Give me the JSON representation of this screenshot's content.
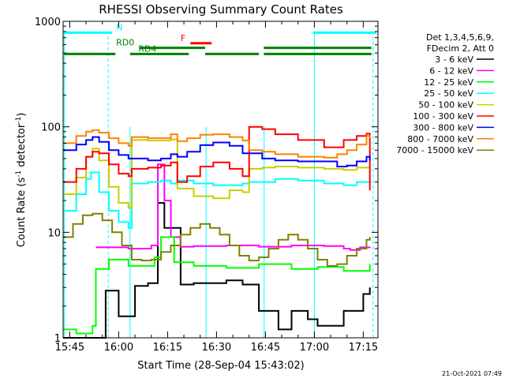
{
  "chart_data": {
    "type": "line",
    "title": "RHESSI Observing Summary Count Rates",
    "xlabel": "Start Time (28-Sep-04 15:43:02)",
    "ylabel_main": "Count Rate (s",
    "ylabel_exp1": "-1",
    "ylabel_mid": " detector",
    "ylabel_exp2": "-1",
    "ylabel_end": ")",
    "yscale": "log",
    "ylim": [
      1,
      1000
    ],
    "xlim_minutes": [
      -0.03,
      96.5
    ],
    "x_ticks": [
      {
        "label": "15:45",
        "t": 2
      },
      {
        "label": "16:00",
        "t": 17
      },
      {
        "label": "16:15",
        "t": 32
      },
      {
        "label": "16:30",
        "t": 47
      },
      {
        "label": "16:45",
        "t": 62
      },
      {
        "label": "17:00",
        "t": 77
      },
      {
        "label": "17:15",
        "t": 92
      }
    ],
    "y_ticks": [
      {
        "label": "1",
        "v": 1
      },
      {
        "label": "10",
        "v": 10
      },
      {
        "label": "100",
        "v": 100
      },
      {
        "label": "1000",
        "v": 1000
      }
    ],
    "grid": false,
    "legend_position": "top-right",
    "legend_header": [
      "Det 1,3,4,5,6,9,",
      "FDecim 2, Att 0"
    ],
    "series": [
      {
        "name": "3 - 6 keV",
        "color": "#000000",
        "x": [
          0,
          10,
          13,
          17,
          22,
          26,
          29,
          31,
          36,
          40,
          50,
          55,
          60,
          66,
          70,
          75,
          78,
          86,
          92,
          94
        ],
        "y": [
          1,
          1,
          2.8,
          1.6,
          3.1,
          3.3,
          19,
          11,
          3.2,
          3.3,
          3.5,
          3.2,
          1.8,
          1.2,
          1.8,
          1.5,
          1.3,
          1.8,
          2.6,
          3.0
        ]
      },
      {
        "name": "6 - 12 keV",
        "color": "#ff00ff",
        "x": [
          10,
          20,
          27,
          29,
          31,
          33,
          36,
          40,
          50,
          60,
          70,
          80,
          86,
          88,
          91,
          94
        ],
        "y": [
          7.2,
          7.0,
          7.5,
          44,
          20,
          9,
          7.3,
          7.4,
          7.5,
          7.3,
          7.5,
          7.4,
          7.0,
          6.8,
          7.2,
          7.3
        ]
      },
      {
        "name": "12 - 25 keV",
        "color": "#00ff00",
        "x": [
          0,
          4,
          9,
          10,
          14,
          20,
          28,
          30,
          34,
          40,
          50,
          60,
          70,
          78,
          86,
          94
        ],
        "y": [
          1.2,
          1.1,
          1.3,
          4.5,
          5.5,
          4.8,
          5.8,
          9,
          5.2,
          4.8,
          4.6,
          5,
          4.5,
          4.7,
          4.3,
          5.0
        ]
      },
      {
        "name": "25 - 50 keV",
        "color": "#00ffff",
        "x": [
          0,
          4,
          7,
          8.5,
          11,
          14,
          17,
          20,
          21,
          26,
          30,
          33,
          35,
          40,
          46,
          51,
          55,
          57,
          61,
          65,
          72,
          80,
          86,
          90,
          94
        ],
        "y": [
          16,
          23,
          32,
          37,
          24,
          16,
          12.5,
          11,
          29,
          30,
          31,
          29,
          31,
          29,
          28,
          28,
          29,
          30,
          30,
          32,
          31,
          29,
          28,
          30,
          31
        ]
      },
      {
        "name": "50 - 100 keV",
        "color": "#cccc00",
        "x": [
          0,
          4,
          7,
          9,
          11,
          14,
          17,
          20,
          21,
          26,
          30,
          33,
          35,
          40,
          46,
          51,
          55,
          57,
          61,
          65,
          72,
          80,
          86,
          90,
          94
        ],
        "y": [
          23,
          33,
          52,
          62,
          48,
          27,
          19,
          17,
          75,
          74,
          74,
          76,
          26,
          22,
          21,
          25,
          24,
          40,
          41,
          42,
          41,
          40,
          39,
          41,
          42
        ]
      },
      {
        "name": "100 - 300 keV",
        "color": "#ff0000",
        "x": [
          0,
          4,
          7,
          9,
          11,
          14,
          17,
          20,
          21,
          26,
          30,
          33,
          35,
          38,
          42,
          46,
          51,
          55,
          57,
          61,
          65,
          72,
          80,
          86,
          90,
          93,
          94
        ],
        "y": [
          30,
          40,
          52,
          58,
          56,
          44,
          36,
          34,
          40,
          41,
          43,
          46,
          30,
          34,
          42,
          46,
          40,
          34,
          100,
          95,
          85,
          75,
          64,
          75,
          82,
          86,
          25
        ]
      },
      {
        "name": "300 - 800 keV",
        "color": "#0000ff",
        "x": [
          0,
          4,
          7,
          9,
          11,
          14,
          17,
          20,
          21,
          26,
          30,
          33,
          35,
          38,
          42,
          46,
          51,
          55,
          57,
          61,
          65,
          72,
          80,
          84,
          87,
          90,
          93,
          94
        ],
        "y": [
          60,
          68,
          75,
          80,
          72,
          60,
          54,
          50,
          50,
          48,
          50,
          55,
          52,
          58,
          67,
          71,
          66,
          56,
          56,
          50,
          48,
          47,
          47,
          42,
          43,
          47,
          52,
          48
        ]
      },
      {
        "name": "800 - 7000 keV",
        "color": "#ff8000",
        "x": [
          0,
          4,
          7,
          9,
          11,
          14,
          17,
          20,
          21,
          26,
          30,
          33,
          35,
          38,
          42,
          46,
          51,
          55,
          57,
          61,
          65,
          72,
          80,
          84,
          87,
          90,
          93,
          94
        ],
        "y": [
          70,
          82,
          90,
          93,
          88,
          78,
          70,
          66,
          80,
          78,
          78,
          85,
          73,
          78,
          84,
          85,
          80,
          74,
          60,
          58,
          55,
          52,
          51,
          55,
          60,
          68,
          82,
          78
        ]
      },
      {
        "name": "7000 - 15000 keV",
        "color": "#808000",
        "x": [
          0,
          3,
          6,
          9,
          12,
          15,
          18,
          21,
          24,
          27,
          30,
          33,
          36,
          39,
          42,
          45,
          48,
          51,
          54,
          57,
          60,
          63,
          66,
          69,
          72,
          75,
          78,
          81,
          84,
          87,
          90,
          93,
          94
        ],
        "y": [
          9,
          12,
          14.5,
          15,
          13,
          10,
          7.5,
          5.5,
          5.4,
          5.5,
          6.5,
          7.5,
          9.5,
          11,
          12,
          11,
          9.5,
          7.5,
          6,
          5.4,
          5.8,
          7,
          8.5,
          9.5,
          8.5,
          7,
          5.5,
          4.8,
          5,
          6,
          7,
          8.5,
          9
        ]
      }
    ],
    "flag_bars": [
      {
        "label": "N",
        "color": "#00ffff",
        "value": 780,
        "segments": [
          [
            0.3,
            15
          ],
          [
            76.5,
            96
          ]
        ],
        "label_at": 16.2
      },
      {
        "label": "F",
        "color": "#ff0000",
        "value": 620,
        "segments": [
          [
            39,
            45.5
          ]
        ],
        "label_at": 36
      },
      {
        "label": "RD0",
        "color": "#008000",
        "value": 560,
        "segments": [
          [
            23.5,
            43.5
          ],
          [
            61.5,
            94.5
          ]
        ],
        "label_at": 16.2
      },
      {
        "label": "RD4",
        "color": "#008000",
        "value": 490,
        "segments": [
          [
            0.3,
            16
          ],
          [
            20.5,
            38.5
          ],
          [
            43.5,
            60
          ],
          [
            61.5,
            94.5
          ]
        ],
        "label_at": 23
      }
    ],
    "vertical_lines": [
      {
        "t": 13.8,
        "color": "#00ffff",
        "style": "dashed",
        "from": 1,
        "to": 780
      },
      {
        "t": 20.5,
        "color": "#00ffff",
        "style": "solid",
        "from": 1,
        "to": 100
      },
      {
        "t": 43.8,
        "color": "#00ffff",
        "style": "solid",
        "from": 1,
        "to": 100
      },
      {
        "t": 61.6,
        "color": "#00ffff",
        "style": "solid",
        "from": 1,
        "to": 100
      },
      {
        "t": 77.0,
        "color": "#00ffff",
        "style": "solid",
        "from": 1,
        "to": 780
      },
      {
        "t": 95.0,
        "color": "#00ffff",
        "style": "dashed",
        "from": 1,
        "to": 780
      },
      {
        "t": 0.3,
        "color": "#00ffff",
        "style": "solid",
        "from": 1,
        "to": 780
      }
    ]
  },
  "footer": {
    "timestamp": "21-Oct-2021 07:49"
  }
}
